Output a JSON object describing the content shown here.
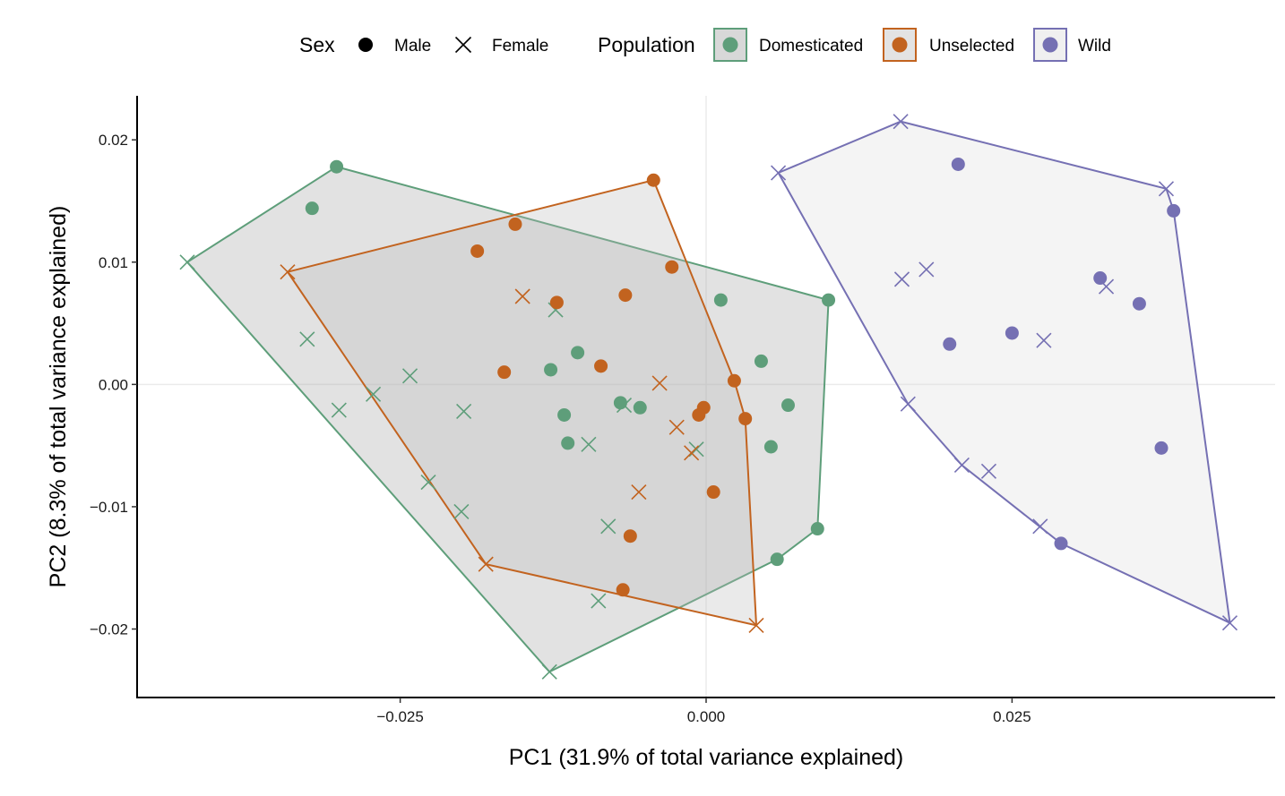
{
  "chart_data": {
    "type": "scatter",
    "xlabel": "PC1 (31.9% of total variance explained)",
    "ylabel": "PC2 (8.3% of total variance explained)",
    "xlim": [
      -0.0465,
      0.0465
    ],
    "ylim": [
      -0.0256,
      0.0236
    ],
    "xticks": [
      -0.025,
      0.0,
      0.025
    ],
    "xtick_labels": [
      "−0.025",
      "0.000",
      "0.025"
    ],
    "yticks": [
      -0.02,
      -0.01,
      0.0,
      0.01,
      0.02
    ],
    "ytick_labels": [
      "−0.02",
      "−0.01",
      "0.00",
      "0.01",
      "0.02"
    ],
    "grid": "zero-lines",
    "legend": {
      "placement": "top",
      "sex_title": "Sex",
      "sex_items": [
        {
          "label": "Male",
          "shape": "circle"
        },
        {
          "label": "Female",
          "shape": "cross"
        }
      ],
      "population_title": "Population",
      "population_items": [
        {
          "label": "Domesticated",
          "key": "domesticated"
        },
        {
          "label": "Unselected",
          "key": "unselected"
        },
        {
          "label": "Wild",
          "key": "wild"
        }
      ]
    },
    "colors": {
      "domesticated": "#5e9e7a",
      "unselected": "#c2631f",
      "wild": "#7570b3"
    },
    "hull_fill": {
      "domesticated": "#9e9e9e",
      "unselected": "#b8b8b8",
      "wild": "#d9d9d9"
    },
    "series": [
      {
        "key": "domesticated",
        "points": [
          {
            "x": -0.0302,
            "y": 0.0178,
            "sex": "male"
          },
          {
            "x": -0.0322,
            "y": 0.0144,
            "sex": "male"
          },
          {
            "x": -0.0105,
            "y": 0.0026,
            "sex": "male"
          },
          {
            "x": -0.0127,
            "y": 0.0012,
            "sex": "male"
          },
          {
            "x": -0.0116,
            "y": -0.0025,
            "sex": "male"
          },
          {
            "x": -0.0113,
            "y": -0.0048,
            "sex": "male"
          },
          {
            "x": -0.007,
            "y": -0.0015,
            "sex": "male"
          },
          {
            "x": -0.0054,
            "y": -0.0019,
            "sex": "male"
          },
          {
            "x": 0.0012,
            "y": 0.0069,
            "sex": "male"
          },
          {
            "x": 0.0045,
            "y": 0.0019,
            "sex": "male"
          },
          {
            "x": 0.0067,
            "y": -0.0017,
            "sex": "male"
          },
          {
            "x": 0.0053,
            "y": -0.0051,
            "sex": "male"
          },
          {
            "x": 0.01,
            "y": 0.0069,
            "sex": "male"
          },
          {
            "x": 0.0091,
            "y": -0.0118,
            "sex": "male"
          },
          {
            "x": 0.0058,
            "y": -0.0143,
            "sex": "male"
          },
          {
            "x": -0.0424,
            "y": 0.01,
            "sex": "female"
          },
          {
            "x": -0.0326,
            "y": 0.0037,
            "sex": "female"
          },
          {
            "x": -0.03,
            "y": -0.0021,
            "sex": "female"
          },
          {
            "x": -0.0272,
            "y": -0.0008,
            "sex": "female"
          },
          {
            "x": -0.0242,
            "y": 0.0007,
            "sex": "female"
          },
          {
            "x": -0.0198,
            "y": -0.0022,
            "sex": "female"
          },
          {
            "x": -0.0227,
            "y": -0.008,
            "sex": "female"
          },
          {
            "x": -0.02,
            "y": -0.0104,
            "sex": "female"
          },
          {
            "x": -0.0123,
            "y": 0.0061,
            "sex": "female"
          },
          {
            "x": -0.0096,
            "y": -0.0049,
            "sex": "female"
          },
          {
            "x": -0.0067,
            "y": -0.0017,
            "sex": "female"
          },
          {
            "x": -0.008,
            "y": -0.0116,
            "sex": "female"
          },
          {
            "x": -0.0088,
            "y": -0.0177,
            "sex": "female"
          },
          {
            "x": -0.0128,
            "y": -0.0235,
            "sex": "female"
          },
          {
            "x": -0.0008,
            "y": -0.0053,
            "sex": "female"
          }
        ]
      },
      {
        "key": "unselected",
        "points": [
          {
            "x": -0.0043,
            "y": 0.0167,
            "sex": "male"
          },
          {
            "x": -0.0156,
            "y": 0.0131,
            "sex": "male"
          },
          {
            "x": -0.0187,
            "y": 0.0109,
            "sex": "male"
          },
          {
            "x": -0.0028,
            "y": 0.0096,
            "sex": "male"
          },
          {
            "x": -0.0066,
            "y": 0.0073,
            "sex": "male"
          },
          {
            "x": -0.0122,
            "y": 0.0067,
            "sex": "male"
          },
          {
            "x": -0.0086,
            "y": 0.0015,
            "sex": "male"
          },
          {
            "x": -0.0165,
            "y": 0.001,
            "sex": "male"
          },
          {
            "x": 0.0023,
            "y": 0.0003,
            "sex": "male"
          },
          {
            "x": -0.0002,
            "y": -0.0019,
            "sex": "male"
          },
          {
            "x": -0.0006,
            "y": -0.0025,
            "sex": "male"
          },
          {
            "x": 0.0032,
            "y": -0.0028,
            "sex": "male"
          },
          {
            "x": 0.0006,
            "y": -0.0088,
            "sex": "male"
          },
          {
            "x": -0.0062,
            "y": -0.0124,
            "sex": "male"
          },
          {
            "x": -0.0068,
            "y": -0.0168,
            "sex": "male"
          },
          {
            "x": -0.0342,
            "y": 0.0092,
            "sex": "female"
          },
          {
            "x": -0.015,
            "y": 0.0072,
            "sex": "female"
          },
          {
            "x": -0.0038,
            "y": 0.0001,
            "sex": "female"
          },
          {
            "x": -0.0024,
            "y": -0.0035,
            "sex": "female"
          },
          {
            "x": -0.0012,
            "y": -0.0056,
            "sex": "female"
          },
          {
            "x": -0.0055,
            "y": -0.0088,
            "sex": "female"
          },
          {
            "x": -0.018,
            "y": -0.0147,
            "sex": "female"
          },
          {
            "x": 0.0041,
            "y": -0.0197,
            "sex": "female"
          }
        ]
      },
      {
        "key": "wild",
        "points": [
          {
            "x": 0.0206,
            "y": 0.018,
            "sex": "male"
          },
          {
            "x": 0.0382,
            "y": 0.0142,
            "sex": "male"
          },
          {
            "x": 0.0322,
            "y": 0.0087,
            "sex": "male"
          },
          {
            "x": 0.0354,
            "y": 0.0066,
            "sex": "male"
          },
          {
            "x": 0.0199,
            "y": 0.0033,
            "sex": "male"
          },
          {
            "x": 0.025,
            "y": 0.0042,
            "sex": "male"
          },
          {
            "x": 0.0372,
            "y": -0.0052,
            "sex": "male"
          },
          {
            "x": 0.029,
            "y": -0.013,
            "sex": "male"
          },
          {
            "x": 0.0159,
            "y": 0.0215,
            "sex": "female"
          },
          {
            "x": 0.0059,
            "y": 0.0173,
            "sex": "female"
          },
          {
            "x": 0.0376,
            "y": 0.016,
            "sex": "female"
          },
          {
            "x": 0.016,
            "y": 0.0086,
            "sex": "female"
          },
          {
            "x": 0.018,
            "y": 0.0094,
            "sex": "female"
          },
          {
            "x": 0.0327,
            "y": 0.008,
            "sex": "female"
          },
          {
            "x": 0.0276,
            "y": 0.0036,
            "sex": "female"
          },
          {
            "x": 0.0165,
            "y": -0.0016,
            "sex": "female"
          },
          {
            "x": 0.0209,
            "y": -0.0066,
            "sex": "female"
          },
          {
            "x": 0.0231,
            "y": -0.0071,
            "sex": "female"
          },
          {
            "x": 0.0273,
            "y": -0.0116,
            "sex": "female"
          },
          {
            "x": 0.0428,
            "y": -0.0195,
            "sex": "female"
          }
        ]
      }
    ]
  }
}
